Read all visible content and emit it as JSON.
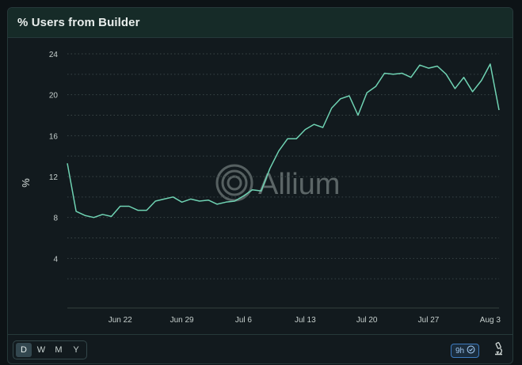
{
  "card": {
    "title": "% Users from Builder"
  },
  "watermark": {
    "text": "Allium"
  },
  "controls": {
    "ranges": [
      "D",
      "W",
      "M",
      "Y"
    ],
    "selected_range": "D",
    "refresh_label": "9h",
    "refresh_icon": "clock-check-icon",
    "explore_icon": "microscope-icon"
  },
  "colors": {
    "line": "#6fd3b3",
    "header_bg": "#162b28",
    "refresh_border": "#3d7bbf"
  },
  "chart_data": {
    "type": "line",
    "title": "% Users from Builder",
    "xlabel": "",
    "ylabel": "%",
    "ylim": [
      0,
      24
    ],
    "yticks": [
      4,
      8,
      12,
      16,
      20,
      24
    ],
    "x_tick_labels": [
      "Jun 22",
      "Jun 29",
      "Jul 6",
      "Jul 13",
      "Jul 20",
      "Jul 27",
      "Aug 3"
    ],
    "x_tick_dates": [
      "2024-06-22",
      "2024-06-29",
      "2024-07-06",
      "2024-07-13",
      "2024-07-20",
      "2024-07-27",
      "2024-08-03"
    ],
    "grid": true,
    "legend": "none",
    "series": [
      {
        "x": [
          "2024-06-16",
          "2024-06-17",
          "2024-06-18",
          "2024-06-19",
          "2024-06-20",
          "2024-06-21",
          "2024-06-22",
          "2024-06-23",
          "2024-06-24",
          "2024-06-25",
          "2024-06-26",
          "2024-06-27",
          "2024-06-28",
          "2024-06-29",
          "2024-06-30",
          "2024-07-01",
          "2024-07-02",
          "2024-07-03",
          "2024-07-04",
          "2024-07-05",
          "2024-07-06",
          "2024-07-07",
          "2024-07-08",
          "2024-07-09",
          "2024-07-10",
          "2024-07-11",
          "2024-07-12",
          "2024-07-13",
          "2024-07-14",
          "2024-07-15",
          "2024-07-16",
          "2024-07-17",
          "2024-07-18",
          "2024-07-19",
          "2024-07-20",
          "2024-07-21",
          "2024-07-22",
          "2024-07-23",
          "2024-07-24",
          "2024-07-25",
          "2024-07-26",
          "2024-07-27",
          "2024-07-28",
          "2024-07-29",
          "2024-07-30",
          "2024-07-31",
          "2024-08-01",
          "2024-08-02",
          "2024-08-03",
          "2024-08-04"
        ],
        "y": [
          13.3,
          8.6,
          8.2,
          8.0,
          8.3,
          8.1,
          9.1,
          9.1,
          8.7,
          8.7,
          9.6,
          9.8,
          10.0,
          9.5,
          9.8,
          9.6,
          9.7,
          9.3,
          9.5,
          9.6,
          10.1,
          10.7,
          10.6,
          12.8,
          14.5,
          15.7,
          15.7,
          16.6,
          17.1,
          16.8,
          18.7,
          19.6,
          19.9,
          18.0,
          20.2,
          20.8,
          22.1,
          22.0,
          22.1,
          21.7,
          22.9,
          22.6,
          22.8,
          22.0,
          20.6,
          21.7,
          20.3,
          21.4,
          23.0,
          18.5
        ]
      }
    ]
  }
}
